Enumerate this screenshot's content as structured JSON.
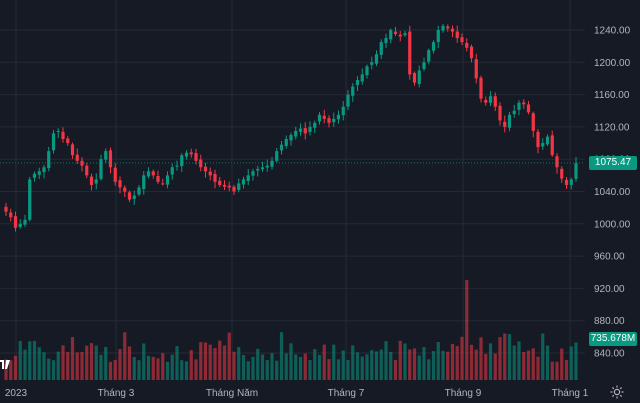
{
  "colors": {
    "background": "#161a25",
    "grid": "#252935",
    "up": "#089981",
    "down": "#f23645",
    "text": "#b2b5be"
  },
  "price_axis": {
    "ticks": [
      "1240.00",
      "1200.00",
      "1160.00",
      "1120.00",
      "1080.00",
      "1040.00",
      "1000.00",
      "960.00",
      "920.00",
      "880.00",
      "840.00"
    ]
  },
  "time_axis": {
    "labels": [
      "2023",
      "Tháng 3",
      "Tháng Năm",
      "Tháng 7",
      "Tháng 9",
      "Tháng 1"
    ]
  },
  "last_price_tag": "1075.47",
  "volume_tag": "735.678M",
  "icons": {
    "settings": "settings-gear-icon",
    "logo": "tradingview-logo-icon"
  },
  "chart_data": {
    "type": "candlestick",
    "price_ylim": [
      820,
      1260
    ],
    "last_price": 1075.47,
    "last_volume_millions": 735.678,
    "closes_approx": [
      1015,
      1008,
      995,
      1000,
      1005,
      1055,
      1062,
      1065,
      1070,
      1090,
      1112,
      1115,
      1105,
      1100,
      1085,
      1078,
      1072,
      1060,
      1048,
      1055,
      1080,
      1090,
      1070,
      1052,
      1045,
      1040,
      1030,
      1035,
      1045,
      1060,
      1065,
      1060,
      1052,
      1050,
      1060,
      1070,
      1072,
      1085,
      1088,
      1086,
      1078,
      1070,
      1065,
      1060,
      1052,
      1048,
      1046,
      1045,
      1040,
      1050,
      1055,
      1060,
      1065,
      1068,
      1070,
      1072,
      1078,
      1090,
      1098,
      1105,
      1110,
      1115,
      1118,
      1112,
      1120,
      1125,
      1135,
      1130,
      1125,
      1130,
      1135,
      1145,
      1160,
      1170,
      1178,
      1185,
      1195,
      1200,
      1210,
      1225,
      1230,
      1240,
      1235,
      1232,
      1236,
      1185,
      1175,
      1190,
      1200,
      1215,
      1225,
      1240,
      1245,
      1242,
      1238,
      1230,
      1225,
      1218,
      1205,
      1180,
      1155,
      1150,
      1158,
      1145,
      1128,
      1120,
      1135,
      1140,
      1150,
      1148,
      1138,
      1115,
      1095,
      1100,
      1108,
      1085,
      1070,
      1056,
      1048,
      1055,
      1075
    ]
  }
}
